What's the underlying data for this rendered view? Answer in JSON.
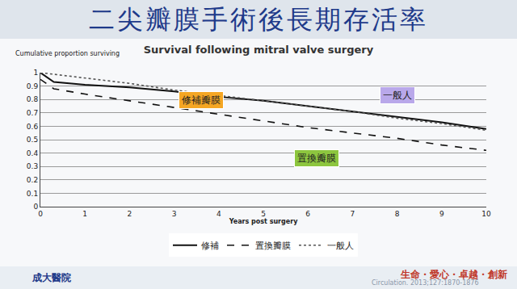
{
  "slide_title": "二尖瓣膜手術後長期存活率",
  "footer": {
    "left": "成大醫院",
    "right": "生命・愛心・卓越・創新",
    "citation": "Circulation. 2013;127:1870-1876"
  },
  "chart_data": {
    "type": "line",
    "title": "Survival following mitral valve surgery",
    "x_label": "Years post surgery",
    "y_label": "Cumulative proportion surviving",
    "xlim": [
      0,
      10
    ],
    "xticks": [
      0,
      1,
      2,
      3,
      4,
      5,
      6,
      7,
      8,
      9,
      10
    ],
    "ylim": [
      0,
      1
    ],
    "yticks": [
      0,
      0.1,
      0.2,
      0.3,
      0.4,
      0.5,
      0.6,
      0.7,
      0.8,
      0.9,
      1
    ],
    "grid": true,
    "legend": "bottom",
    "annotations": [
      "修補瓣膜",
      "一般人",
      "置換瓣膜"
    ],
    "series": [
      {
        "name": "修補",
        "color": "#111111",
        "line_style": "solid",
        "x": [
          0,
          0.3,
          1,
          2,
          3,
          4,
          5,
          6,
          7,
          8,
          9,
          10
        ],
        "values": [
          1.0,
          0.93,
          0.91,
          0.89,
          0.86,
          0.82,
          0.79,
          0.75,
          0.71,
          0.67,
          0.63,
          0.58
        ]
      },
      {
        "name": "置換瓣膜",
        "color": "#111111",
        "line_style": "dash",
        "x": [
          0,
          0.3,
          1,
          2,
          3,
          4,
          5,
          6,
          7,
          8,
          9,
          10
        ],
        "values": [
          0.95,
          0.88,
          0.84,
          0.79,
          0.74,
          0.69,
          0.64,
          0.59,
          0.55,
          0.51,
          0.46,
          0.42
        ]
      },
      {
        "name": "一般人",
        "color": "#555555",
        "line_style": "dot",
        "x": [
          0,
          1,
          2,
          3,
          4,
          5,
          6,
          7,
          8,
          9,
          10
        ],
        "values": [
          1.0,
          0.96,
          0.92,
          0.87,
          0.83,
          0.79,
          0.75,
          0.71,
          0.66,
          0.62,
          0.57
        ]
      }
    ]
  }
}
